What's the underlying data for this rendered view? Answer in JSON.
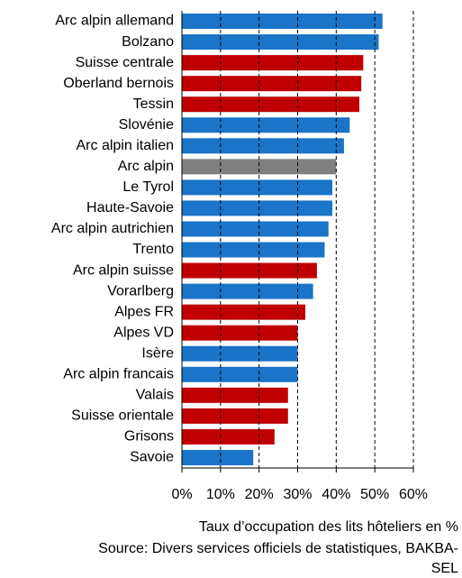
{
  "chart_data": {
    "type": "barh",
    "categories": [
      "Arc alpin allemand",
      "Bolzano",
      "Suisse centrale",
      "Oberland bernois",
      "Tessin",
      "Slovénie",
      "Arc alpin italien",
      "Arc alpin",
      "Le Tyrol",
      "Haute-Savoie",
      "Arc alpin autrichien",
      "Trento",
      "Arc alpin suisse",
      "Vorarlberg",
      "Alpes FR",
      "Alpes VD",
      "Isère",
      "Arc alpin francais",
      "Valais",
      "Suisse orientale",
      "Grisons",
      "Savoie"
    ],
    "values": [
      52,
      51,
      47,
      46.5,
      46,
      43.5,
      42,
      40,
      39,
      39,
      38,
      37,
      35,
      34,
      32,
      30,
      30,
      30,
      27.5,
      27.5,
      24,
      18.5
    ],
    "colors": [
      "#1a74c8",
      "#1a74c8",
      "#c00000",
      "#c00000",
      "#c00000",
      "#1a74c8",
      "#1a74c8",
      "#808080",
      "#1a74c8",
      "#1a74c8",
      "#1a74c8",
      "#1a74c8",
      "#c00000",
      "#1a74c8",
      "#c00000",
      "#c00000",
      "#1a74c8",
      "#1a74c8",
      "#c00000",
      "#c00000",
      "#c00000",
      "#1a74c8"
    ],
    "xlim": [
      0,
      60
    ],
    "xticks": [
      {
        "value": 0,
        "label": "0%"
      },
      {
        "value": 10,
        "label": "10%"
      },
      {
        "value": 20,
        "label": "20%"
      },
      {
        "value": 30,
        "label": "30%"
      },
      {
        "value": 40,
        "label": "40%"
      },
      {
        "value": 50,
        "label": "50%"
      },
      {
        "value": 60,
        "label": "60%"
      }
    ],
    "grid": true,
    "xlabel": "Taux d’occupation des lits hôteliers en %",
    "source": [
      "Source: Divers services officiels de statistiques, BAKBA-",
      "SEL"
    ]
  }
}
